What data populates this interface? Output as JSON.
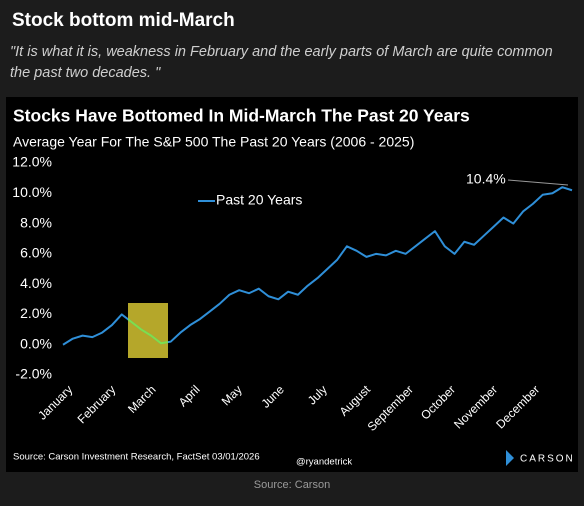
{
  "header": {
    "title": "Stock bottom mid-March",
    "quote": "\"It is what it is, weakness in February and the early parts of March are quite common the past two decades. \""
  },
  "chart_data": {
    "type": "line",
    "title": "Stocks Have Bottomed In Mid-March The Past 20 Years",
    "subtitle": "Average Year For The S&P 500 The Past 20 Years (2006 - 2025)",
    "x": [
      0,
      1,
      2,
      3,
      4,
      5,
      6,
      7,
      8,
      9,
      10,
      11,
      12,
      13,
      14,
      15,
      16,
      17,
      18,
      19,
      20,
      21,
      22,
      23,
      24,
      25,
      26,
      27,
      28,
      29,
      30,
      31,
      32,
      33,
      34,
      35,
      36,
      37,
      38,
      39,
      40,
      41,
      42,
      43,
      44,
      45,
      46,
      47,
      48,
      49,
      50,
      51,
      52
    ],
    "series": [
      {
        "name": "Past 20 Years",
        "color": "#2f8fd8",
        "values": [
          0,
          0.4,
          0.6,
          0.5,
          0.8,
          1.3,
          2.0,
          1.5,
          1.0,
          0.6,
          0.1,
          0.2,
          0.8,
          1.3,
          1.7,
          2.2,
          2.7,
          3.3,
          3.6,
          3.4,
          3.7,
          3.2,
          3.0,
          3.5,
          3.3,
          3.9,
          4.4,
          5.0,
          5.6,
          6.5,
          6.2,
          5.8,
          6.0,
          5.9,
          6.2,
          6.0,
          6.5,
          7.0,
          7.5,
          6.5,
          6.0,
          6.8,
          6.6,
          7.2,
          7.8,
          8.4,
          8.0,
          8.8,
          9.3,
          9.9,
          10.0,
          10.4,
          10.2
        ]
      }
    ],
    "xlim": [
      0,
      52
    ],
    "xticks": [
      {
        "value": 0,
        "label": "January"
      },
      {
        "value": 4.4,
        "label": "February"
      },
      {
        "value": 8.5,
        "label": "March"
      },
      {
        "value": 13,
        "label": "April"
      },
      {
        "value": 17.3,
        "label": "May"
      },
      {
        "value": 21.6,
        "label": "June"
      },
      {
        "value": 26,
        "label": "July"
      },
      {
        "value": 30.4,
        "label": "August"
      },
      {
        "value": 34.8,
        "label": "September"
      },
      {
        "value": 39.1,
        "label": "October"
      },
      {
        "value": 43.4,
        "label": "November"
      },
      {
        "value": 47.7,
        "label": "December"
      }
    ],
    "ylim": [
      -2,
      12
    ],
    "yticks": [
      {
        "value": -2,
        "label": "-2.0%"
      },
      {
        "value": 0,
        "label": "0.0%"
      },
      {
        "value": 2,
        "label": "2.0%"
      },
      {
        "value": 4,
        "label": "4.0%"
      },
      {
        "value": 6,
        "label": "6.0%"
      },
      {
        "value": 8,
        "label": "8.0%"
      },
      {
        "value": 10,
        "label": "10.0%"
      },
      {
        "value": 12,
        "label": "12.0%"
      }
    ],
    "annotation": "10.4%",
    "source": "Source: Carson Investment Research, FactSet 03/01/2026",
    "handle": "@ryandetrick",
    "brand": "CARSON"
  },
  "footer": "Source: Carson"
}
